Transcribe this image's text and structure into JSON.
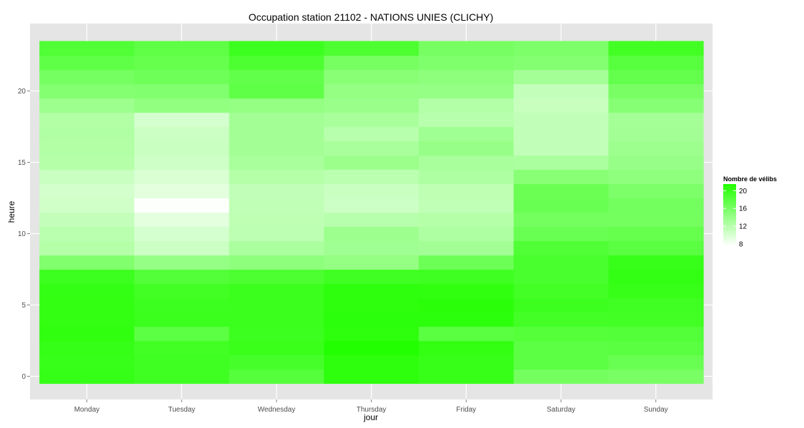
{
  "chart_data": {
    "type": "heatmap",
    "title": "Occupation station 21102 - NATIONS UNIES (CLICHY)",
    "xlabel": "jour",
    "ylabel": "heure",
    "x_categories": [
      "Monday",
      "Tuesday",
      "Wednesday",
      "Thursday",
      "Friday",
      "Saturday",
      "Sunday"
    ],
    "y_values": [
      0,
      1,
      2,
      3,
      4,
      5,
      6,
      7,
      8,
      9,
      10,
      11,
      12,
      13,
      14,
      15,
      16,
      17,
      18,
      19,
      20,
      21,
      22,
      23
    ],
    "y_ticks": [
      0,
      5,
      10,
      15,
      20
    ],
    "ylim": [
      -0.5,
      23.5
    ],
    "grid": true,
    "legend": {
      "title": "Nombre de vélibs",
      "position": "right",
      "breaks": [
        8,
        12,
        16,
        20
      ],
      "range": [
        7.5,
        21.5
      ],
      "low_color": "#ffffff",
      "high_color": "#22ff00"
    },
    "values": {
      "Monday": [
        20.3,
        20.1,
        20.3,
        20.6,
        20.5,
        20.5,
        20.4,
        19.8,
        15.5,
        12.2,
        11.9,
        11.3,
        10.5,
        10.3,
        10.9,
        12.2,
        12.4,
        12.5,
        12.4,
        13.7,
        15.3,
        16.2,
        17.6,
        18.6
      ],
      "Tuesday": [
        19.7,
        19.7,
        19.5,
        17.8,
        19.9,
        19.8,
        19.5,
        18.4,
        14.2,
        10.8,
        10.2,
        9.3,
        7.6,
        9.3,
        9.9,
        10.6,
        10.9,
        10.8,
        10.2,
        14.4,
        15.4,
        16.6,
        17.2,
        17.7
      ],
      "Wednesday": [
        18.2,
        19.2,
        20.0,
        19.8,
        19.9,
        19.9,
        19.9,
        18.8,
        14.7,
        12.8,
        11.7,
        11.6,
        11.5,
        11.4,
        12.2,
        13.0,
        13.3,
        13.3,
        13.3,
        14.3,
        17.6,
        17.5,
        18.8,
        19.8
      ],
      "Thursday": [
        20.8,
        20.8,
        21.5,
        20.8,
        20.9,
        20.8,
        20.8,
        19.6,
        14.3,
        13.5,
        13.7,
        12.0,
        10.7,
        10.9,
        11.8,
        13.8,
        12.9,
        12.0,
        12.9,
        13.9,
        14.3,
        15.0,
        16.1,
        18.8
      ],
      "Friday": [
        20.2,
        20.2,
        20.5,
        17.9,
        20.9,
        21.0,
        20.6,
        19.7,
        16.8,
        13.3,
        12.6,
        12.2,
        11.5,
        11.6,
        12.6,
        13.0,
        14.1,
        13.5,
        12.0,
        12.3,
        14.2,
        14.7,
        15.6,
        16.1
      ],
      "Saturday": [
        16.3,
        17.8,
        17.8,
        18.3,
        19.4,
        19.8,
        19.4,
        19.0,
        19.0,
        18.6,
        17.0,
        16.3,
        17.0,
        16.9,
        15.0,
        12.8,
        11.4,
        11.4,
        11.4,
        11.0,
        11.3,
        13.2,
        15.3,
        15.8
      ],
      "Sunday": [
        16.0,
        17.0,
        18.0,
        18.4,
        19.5,
        19.6,
        20.2,
        20.4,
        20.1,
        18.0,
        17.2,
        16.3,
        16.4,
        15.8,
        14.6,
        14.1,
        13.7,
        13.3,
        13.2,
        15.1,
        16.0,
        17.3,
        18.1,
        19.5
      ]
    }
  }
}
